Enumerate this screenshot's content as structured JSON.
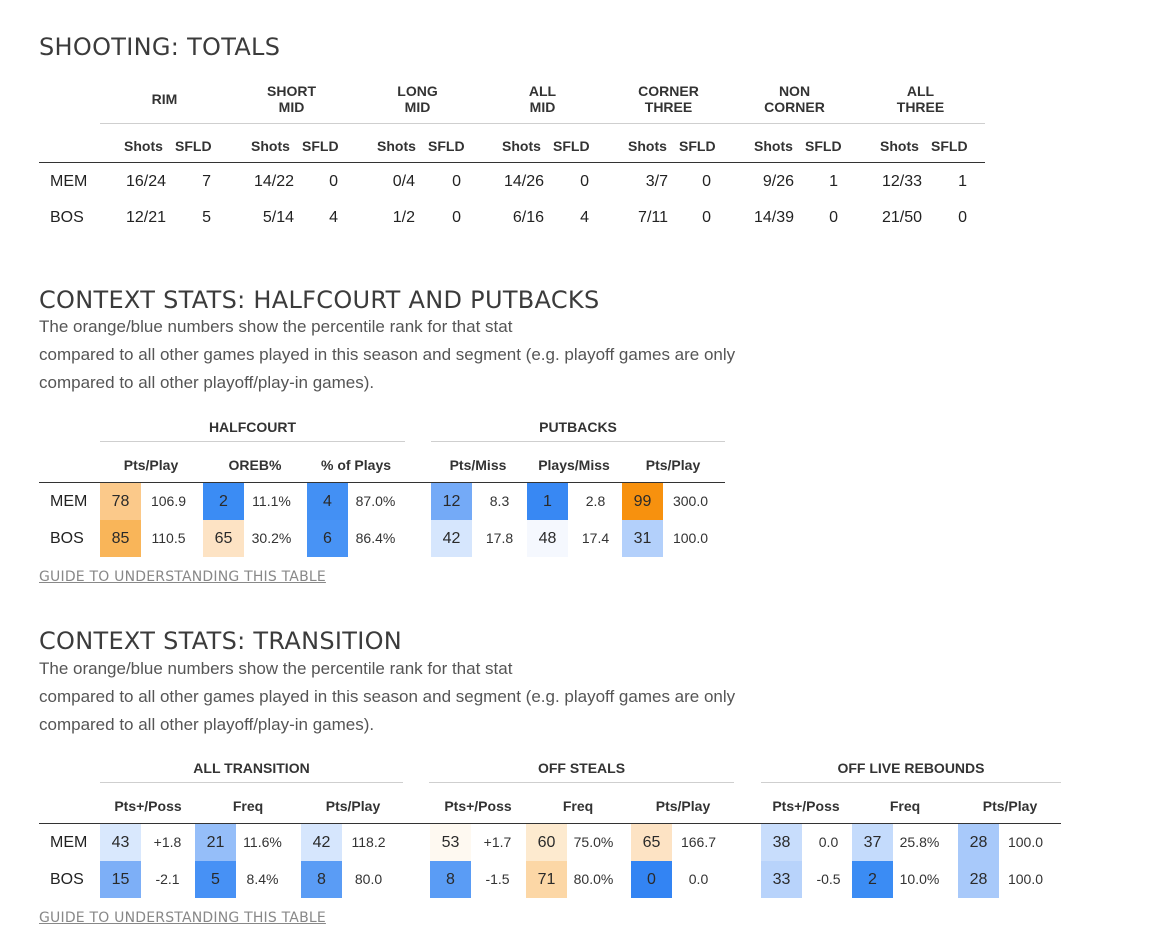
{
  "shooting": {
    "title": "SHOOTING: TOTALS",
    "groups": [
      {
        "line1": "RIM",
        "line2": ""
      },
      {
        "line1": "SHORT",
        "line2": "MID"
      },
      {
        "line1": "LONG",
        "line2": "MID"
      },
      {
        "line1": "ALL",
        "line2": "MID"
      },
      {
        "line1": "CORNER",
        "line2": "THREE"
      },
      {
        "line1": "NON",
        "line2": "CORNER"
      },
      {
        "line1": "ALL",
        "line2": "THREE"
      }
    ],
    "subheaders": [
      "Shots",
      "SFLD"
    ],
    "rows": [
      {
        "team": "MEM",
        "cells": [
          "16/24",
          "7",
          "14/22",
          "0",
          "0/4",
          "0",
          "14/26",
          "0",
          "3/7",
          "0",
          "9/26",
          "1",
          "12/33",
          "1"
        ]
      },
      {
        "team": "BOS",
        "cells": [
          "12/21",
          "5",
          "5/14",
          "4",
          "1/2",
          "0",
          "6/16",
          "4",
          "7/11",
          "0",
          "14/39",
          "0",
          "21/50",
          "0"
        ]
      }
    ]
  },
  "halfcourt": {
    "title": "CONTEXT STATS: HALFCOURT AND PUTBACKS",
    "desc": [
      "The orange/blue numbers show the percentile rank for that stat",
      "compared to all other games played in this season and segment (e.g. playoff games are only",
      "compared to all other playoff/play-in games)."
    ],
    "groups": [
      "HALFCOURT",
      "PUTBACKS"
    ],
    "columns": [
      "Pts/Play",
      "OREB%",
      "% of Plays",
      "Pts/Miss",
      "Plays/Miss",
      "Pts/Play"
    ],
    "rows": [
      {
        "team": "MEM",
        "cells": [
          {
            "pct": "78",
            "val": "106.9",
            "color": "#fbc98a"
          },
          {
            "pct": "2",
            "val": "11.1%",
            "color": "#3b8cf4"
          },
          {
            "pct": "4",
            "val": "87.0%",
            "color": "#4390f4"
          },
          {
            "pct": "12",
            "val": "8.3",
            "color": "#74aaf7"
          },
          {
            "pct": "1",
            "val": "2.8",
            "color": "#3888f3"
          },
          {
            "pct": "99",
            "val": "300.0",
            "color": "#f7910e"
          }
        ]
      },
      {
        "team": "BOS",
        "cells": [
          {
            "pct": "85",
            "val": "110.5",
            "color": "#f9b559"
          },
          {
            "pct": "65",
            "val": "30.2%",
            "color": "#fde3c4"
          },
          {
            "pct": "6",
            "val": "86.4%",
            "color": "#4893f5"
          },
          {
            "pct": "42",
            "val": "17.8",
            "color": "#d6e6fd"
          },
          {
            "pct": "48",
            "val": "17.4",
            "color": "#f5f8fe"
          },
          {
            "pct": "31",
            "val": "100.0",
            "color": "#b3d0fb"
          }
        ]
      }
    ],
    "guide": "GUIDE TO UNDERSTANDING THIS TABLE"
  },
  "transition": {
    "title": "CONTEXT STATS: TRANSITION",
    "desc": [
      "The orange/blue numbers show the percentile rank for that stat",
      "compared to all other games played in this season and segment (e.g. playoff games are only",
      "compared to all other playoff/play-in games)."
    ],
    "groups": [
      "ALL TRANSITION",
      "OFF STEALS",
      "OFF LIVE REBOUNDS"
    ],
    "columns": [
      "Pts+/Poss",
      "Freq",
      "Pts/Play",
      "Pts+/Poss",
      "Freq",
      "Pts/Play",
      "Pts+/Poss",
      "Freq",
      "Pts/Play"
    ],
    "rows": [
      {
        "team": "MEM",
        "cells": [
          {
            "pct": "43",
            "val": "+1.8",
            "color": "#d9e8fd"
          },
          {
            "pct": "21",
            "val": "11.6%",
            "color": "#95bef9"
          },
          {
            "pct": "42",
            "val": "118.2",
            "color": "#d6e6fd"
          },
          {
            "pct": "53",
            "val": "+1.7",
            "color": "#fef9f1"
          },
          {
            "pct": "60",
            "val": "75.0%",
            "color": "#fdeacf"
          },
          {
            "pct": "65",
            "val": "166.7",
            "color": "#fde3c4"
          },
          {
            "pct": "38",
            "val": "0.0",
            "color": "#c8ddfc"
          },
          {
            "pct": "37",
            "val": "25.8%",
            "color": "#c4dbfc"
          },
          {
            "pct": "28",
            "val": "100.0",
            "color": "#a8c9fa"
          }
        ]
      },
      {
        "team": "BOS",
        "cells": [
          {
            "pct": "15",
            "val": "-2.1",
            "color": "#7dafF7"
          },
          {
            "pct": "5",
            "val": "8.4%",
            "color": "#4791f5"
          },
          {
            "pct": "8",
            "val": "80.0",
            "color": "#5a9cf5"
          },
          {
            "pct": "8",
            "val": "-1.5",
            "color": "#5a9cf5"
          },
          {
            "pct": "71",
            "val": "80.0%",
            "color": "#fcd7a6"
          },
          {
            "pct": "0",
            "val": "0.0",
            "color": "#3384f3"
          },
          {
            "pct": "33",
            "val": "-0.5",
            "color": "#b8d3fb"
          },
          {
            "pct": "2",
            "val": "10.0%",
            "color": "#3b8cf4"
          },
          {
            "pct": "28",
            "val": "100.0",
            "color": "#a8c9fa"
          }
        ]
      }
    ],
    "guide": "GUIDE TO UNDERSTANDING THIS TABLE"
  }
}
